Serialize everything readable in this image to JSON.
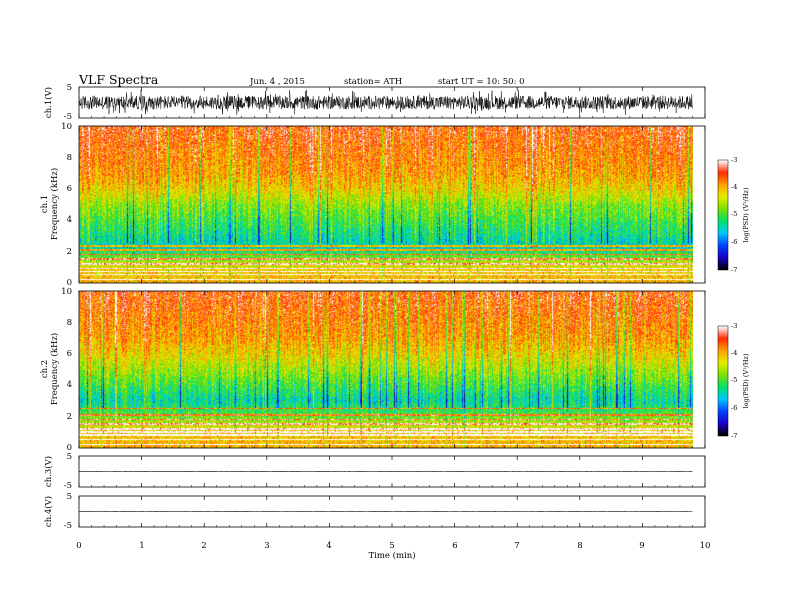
{
  "header": {
    "title": "VLF Spectra",
    "date": "Jun. 4 , 2015",
    "station": "station= ATH",
    "start": "start UT = 10: 50: 0"
  },
  "colors": {
    "axis": "#000000",
    "trace": "#000000",
    "colormap": [
      "#000000",
      "#1a00c8",
      "#0044ff",
      "#00c8ff",
      "#00e26a",
      "#7ae000",
      "#e8ee00",
      "#ffa000",
      "#ff2a00",
      "#ffffff"
    ]
  },
  "chart_data": [
    {
      "type": "line",
      "id": "ch1-waveform",
      "ylabel": "ch.1(V)",
      "ylim": [
        -5,
        5
      ],
      "yticks": [
        "5",
        "-5"
      ],
      "xlim": [
        0,
        10
      ],
      "description_of_signal": "dense noisy waveform, amplitude approximately ±2 V with spikes to ±4 V",
      "amplitude": 2.2,
      "spike_amplitude": 4.2
    },
    {
      "type": "heatmap",
      "id": "ch1-spectrogram",
      "ylabel": "ch.1 Frequency (kHz)",
      "ylabel_lines": [
        "ch.1",
        "Frequency  (kHz)"
      ],
      "ylim": [
        0,
        10
      ],
      "yticks": [
        "0",
        "2",
        "4",
        "6",
        "8",
        "10"
      ],
      "xlim": [
        0,
        10
      ],
      "data_end_min": 9.8,
      "colorbar": {
        "label": "log(PSD) (V²/Hz)",
        "range": [
          -7,
          -3
        ],
        "ticks": [
          "-3",
          "-4",
          "-5",
          "-6",
          "-7"
        ]
      },
      "profile_logpsd_by_khz": [
        [
          0,
          -4.0
        ],
        [
          0.8,
          -4.2
        ],
        [
          1.5,
          -4.7
        ],
        [
          2.2,
          -5.5
        ],
        [
          3.0,
          -5.3
        ],
        [
          4.0,
          -5.0
        ],
        [
          5.0,
          -4.7
        ],
        [
          6.0,
          -4.2
        ],
        [
          7.0,
          -3.9
        ],
        [
          10.0,
          -3.5
        ]
      ],
      "horizontal_lines_khz": [
        0.2,
        0.5,
        0.7,
        0.9,
        1.2,
        1.5,
        1.8,
        2.1,
        2.35
      ]
    },
    {
      "type": "heatmap",
      "id": "ch2-spectrogram",
      "ylabel": "ch.2 Frequency (kHz)",
      "ylabel_lines": [
        "ch.2",
        "Frequency  (kHz)"
      ],
      "ylim": [
        0,
        10
      ],
      "yticks": [
        "0",
        "2",
        "4",
        "6",
        "8",
        "10"
      ],
      "xlim": [
        0,
        10
      ],
      "data_end_min": 9.8,
      "colorbar": {
        "label": "log(PSD) (V²/Hz)",
        "range": [
          -7,
          -3
        ],
        "ticks": [
          "-3",
          "-4",
          "-5",
          "-6",
          "-7"
        ]
      },
      "profile_logpsd_by_khz": [
        [
          0,
          -4.0
        ],
        [
          0.8,
          -4.1
        ],
        [
          1.5,
          -4.5
        ],
        [
          2.2,
          -5.0
        ],
        [
          3.0,
          -5.4
        ],
        [
          4.0,
          -5.0
        ],
        [
          5.0,
          -4.6
        ],
        [
          6.0,
          -4.2
        ],
        [
          7.0,
          -3.9
        ],
        [
          10.0,
          -3.5
        ]
      ],
      "horizontal_lines_khz": [
        0.2,
        0.5,
        0.8,
        1.0,
        1.2,
        1.5,
        1.8,
        2.1,
        2.5
      ]
    },
    {
      "type": "line",
      "id": "ch3-waveform",
      "ylabel": "ch.3(V)",
      "ylim": [
        -5,
        5
      ],
      "yticks": [
        "5",
        "-5"
      ],
      "xlim": [
        0,
        10
      ],
      "baseline": 0,
      "amplitude": 0.08
    },
    {
      "type": "line",
      "id": "ch4-waveform",
      "ylabel": "ch.4(V)",
      "ylim": [
        -5,
        5
      ],
      "yticks": [
        "5",
        "-5"
      ],
      "xlim": [
        0,
        10
      ],
      "baseline": 0,
      "amplitude": 0.02
    }
  ],
  "xaxis": {
    "label": "Time  (min)",
    "ticks": [
      "0",
      "1",
      "2",
      "3",
      "4",
      "5",
      "6",
      "7",
      "8",
      "9",
      "10"
    ]
  }
}
